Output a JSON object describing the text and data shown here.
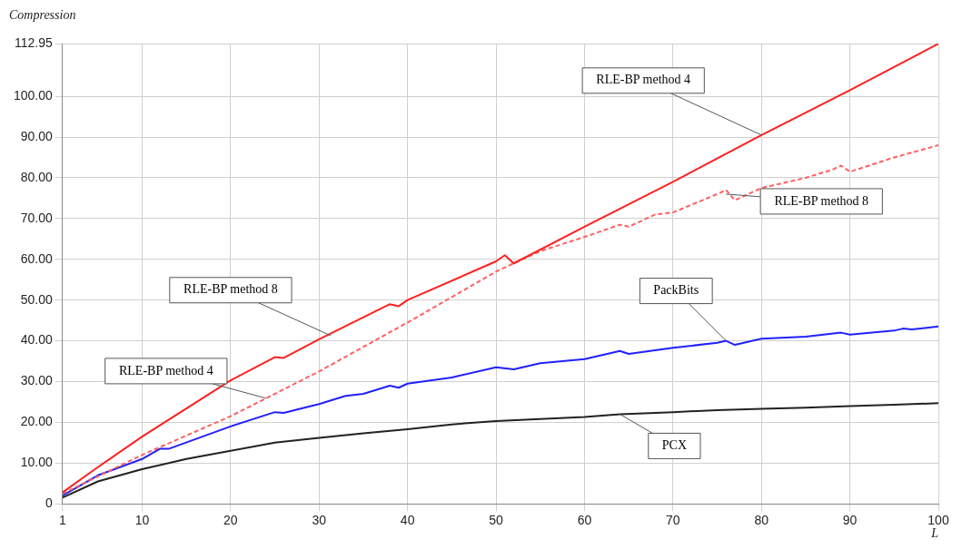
{
  "chart_data": {
    "type": "line",
    "xlabel": "L",
    "ylabel": "Compression",
    "xlim": [
      1,
      100
    ],
    "xticks": [
      1,
      10,
      20,
      30,
      40,
      50,
      60,
      70,
      80,
      90,
      100
    ],
    "ylim": [
      0,
      112.95
    ],
    "yticks": [
      0,
      {
        "value": 10,
        "label": "10.00"
      },
      {
        "value": 20,
        "label": "20.00"
      },
      {
        "value": 30,
        "label": "30.00"
      },
      {
        "value": 40,
        "label": "40.00"
      },
      {
        "value": 50,
        "label": "50.00"
      },
      {
        "value": 60,
        "label": "60.00"
      },
      {
        "value": 70,
        "label": "70.00"
      },
      {
        "value": 80,
        "label": "80.00"
      },
      {
        "value": 90,
        "label": "90.00"
      },
      {
        "value": 100,
        "label": "100.00"
      },
      {
        "value": 112.95,
        "label": "112.95"
      }
    ],
    "grid": true,
    "legend": false,
    "marker": "none",
    "series": [
      {
        "color": "#ff2020",
        "line_style": "solid",
        "x": [
          1,
          5,
          10,
          20,
          25,
          26,
          30,
          38,
          39,
          40,
          50,
          51,
          52,
          60,
          70,
          80,
          90,
          100
        ],
        "values": [
          2.8,
          9,
          16.5,
          30.3,
          36,
          35.8,
          40.4,
          49,
          48.5,
          50,
          59.5,
          61,
          59,
          68,
          79,
          90.5,
          101.5,
          112.9
        ]
      },
      {
        "color": "#ff6060",
        "line_style": "dashed",
        "x": [
          1,
          10,
          20,
          30,
          40,
          50,
          55,
          60,
          64,
          65,
          68,
          70,
          75,
          76,
          77,
          80,
          85,
          88,
          89,
          90,
          95,
          100
        ],
        "values": [
          2.5,
          12,
          21.5,
          32.5,
          44.5,
          57,
          62,
          65.5,
          68.5,
          68,
          71,
          71.5,
          76,
          77,
          74.5,
          77.5,
          80,
          82,
          83,
          81.5,
          85,
          88
        ]
      },
      {
        "color": "#2020ff",
        "line_style": "solid",
        "x": [
          1,
          5,
          10,
          12,
          13,
          20,
          25,
          26,
          30,
          33,
          35,
          38,
          39,
          40,
          45,
          50,
          52,
          55,
          60,
          64,
          65,
          70,
          75,
          76,
          77,
          80,
          85,
          89,
          90,
          95,
          96,
          97,
          100
        ],
        "values": [
          2,
          7,
          11,
          13.5,
          13.5,
          19,
          22.5,
          22.3,
          24.5,
          26.5,
          27,
          29,
          28.5,
          29.5,
          31,
          33.5,
          33,
          34.5,
          35.5,
          37.5,
          36.8,
          38.3,
          39.5,
          40,
          39,
          40.5,
          41,
          42,
          41.5,
          42.5,
          43,
          42.8,
          43.5
        ]
      },
      {
        "color": "#222222",
        "line_style": "solid",
        "x": [
          1,
          5,
          10,
          15,
          20,
          25,
          30,
          35,
          40,
          45,
          50,
          55,
          60,
          64,
          70,
          75,
          80,
          85,
          90,
          95,
          100
        ],
        "values": [
          1.5,
          5.5,
          8.5,
          11,
          13,
          15,
          16.2,
          17.3,
          18.3,
          19.5,
          20.3,
          20.8,
          21.3,
          22,
          22.5,
          23,
          23.3,
          23.6,
          24,
          24.3,
          24.7
        ]
      }
    ],
    "annotations": [
      {
        "text": "RLE-BP method 4",
        "x": 80,
        "y": 90.5
      },
      {
        "text": "RLE-BP method 8",
        "x": 76,
        "y": 76
      },
      {
        "text": "PackBits",
        "x": 76,
        "y": 40
      },
      {
        "text": "PCX",
        "x": 64,
        "y": 22
      },
      {
        "text": "RLE-BP method 8",
        "x": 31.3,
        "y": 41.3
      },
      {
        "text": "RLE-BP method 4",
        "x": 24,
        "y": 25.9
      }
    ]
  }
}
